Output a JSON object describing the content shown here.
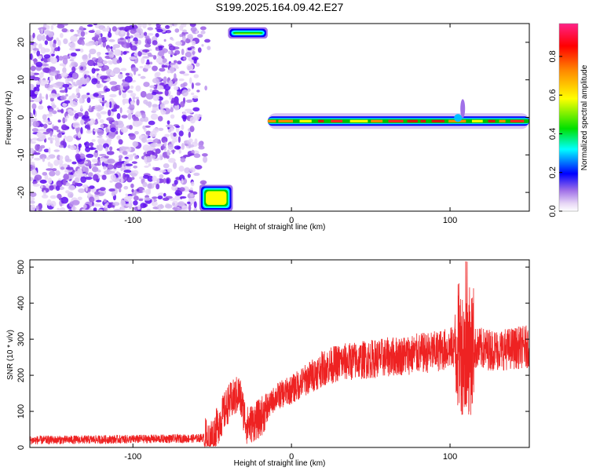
{
  "title": "S199.2025.164.09.42.E27",
  "chart_data": [
    {
      "type": "heatmap",
      "xlabel": "Height of straight line (km)",
      "ylabel": "Frequency (Hz)",
      "xlim": [
        -165,
        150
      ],
      "ylim": [
        -25,
        25
      ],
      "x_ticks": [
        -100,
        0,
        100
      ],
      "y_ticks": [
        -20,
        -10,
        0,
        10,
        20
      ],
      "colorbar": {
        "label": "Normalized spectral amplitude",
        "range": [
          0,
          0.97
        ],
        "ticks": [
          0.0,
          0.2,
          0.4,
          0.6,
          0.8
        ]
      },
      "features": {
        "noise_region_x": [
          -165,
          -60
        ],
        "empty_gap_x": [
          -48,
          -18
        ],
        "blob_top": {
          "x": [
            -40,
            -15
          ],
          "y": [
            21,
            24
          ]
        },
        "blob_bottom": {
          "x": [
            -58,
            -37
          ],
          "y": [
            -25,
            -18
          ]
        },
        "signal_band": {
          "x": [
            -15,
            150
          ],
          "y": -1,
          "peak_x": 108
        }
      }
    },
    {
      "type": "line",
      "xlabel": "Height of straight line (km)",
      "ylabel": "SNR (10 * v/v)",
      "xlim": [
        -165,
        150
      ],
      "ylim": [
        0,
        520
      ],
      "x_ticks": [
        -100,
        0,
        100
      ],
      "y_ticks": [
        0,
        100,
        200,
        300,
        400,
        500
      ],
      "series": [
        {
          "color": "#ee2222",
          "trend": [
            [
              -165,
              20
            ],
            [
              -60,
              25
            ],
            [
              -50,
              30
            ],
            [
              -40,
              120
            ],
            [
              -33,
              150
            ],
            [
              -28,
              60
            ],
            [
              -20,
              80
            ],
            [
              -10,
              140
            ],
            [
              0,
              160
            ],
            [
              10,
              190
            ],
            [
              20,
              220
            ],
            [
              30,
              235
            ],
            [
              50,
              245
            ],
            [
              70,
              255
            ],
            [
              90,
              265
            ],
            [
              100,
              275
            ],
            [
              105,
              280
            ],
            [
              110,
              260
            ],
            [
              115,
              275
            ],
            [
              130,
              270
            ],
            [
              150,
              280
            ]
          ]
        }
      ]
    }
  ]
}
